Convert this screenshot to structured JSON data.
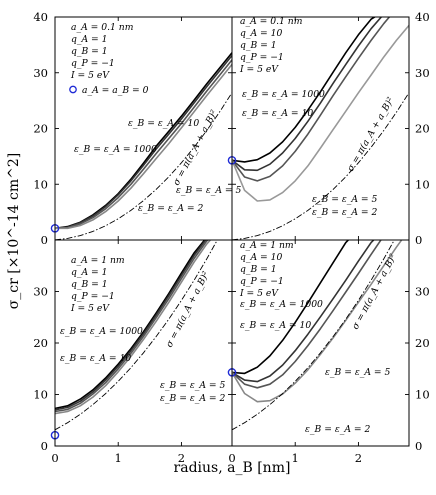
{
  "figure": {
    "xlabel": "radius, a_B [nm]",
    "ylabel": "σ_cr [×10^-14 cm^2]",
    "left_ticks": [
      "0",
      "10",
      "20",
      "30",
      "40"
    ],
    "right_ticks": [
      "0",
      "10",
      "20",
      "30",
      "40"
    ],
    "bottom_ticks": [
      "0",
      "1",
      "2",
      "0",
      "1",
      "2"
    ]
  },
  "chart_data": [
    {
      "type": "line",
      "panel": "top-left",
      "xlim": [
        0,
        2.8
      ],
      "ylim": [
        0,
        40
      ],
      "params": [
        "a_A = 0.1 nm",
        "q_A = 1",
        "q_B = 1",
        "q_P = −1",
        "I = 5 eV"
      ],
      "marker_label": "a_A = a_B = 0",
      "annotations": [
        "ε_B = ε_A = 10",
        "ε_B = ε_A = 1000",
        "ε_B = ε_A = 5",
        "ε_B = ε_A = 2",
        "σ = π(a_A + a_B)²"
      ],
      "marker": {
        "x": 0,
        "y": 2.1
      },
      "series": [
        {
          "label": "ε_B = ε_A = 1000",
          "color": "#000000",
          "x": [
            0,
            0.2,
            0.4,
            0.6,
            0.8,
            1.0,
            1.2,
            1.4,
            1.6,
            1.8,
            2.0,
            2.2,
            2.4,
            2.6,
            2.8
          ],
          "y": [
            2.1,
            2.4,
            3.2,
            4.5,
            6.2,
            8.3,
            10.9,
            13.8,
            16.8,
            19.5,
            22.2,
            25.1,
            28.0,
            30.8,
            33.6
          ]
        },
        {
          "label": "ε_B = ε_A = 10",
          "color": "#333333",
          "x": [
            0,
            0.2,
            0.4,
            0.6,
            0.8,
            1.0,
            1.2,
            1.4,
            1.6,
            1.8,
            2.0,
            2.2,
            2.4,
            2.6,
            2.8
          ],
          "y": [
            2.1,
            2.3,
            3.1,
            4.3,
            6.0,
            8.1,
            10.6,
            13.4,
            16.3,
            19.0,
            21.7,
            24.6,
            27.5,
            30.3,
            33.1
          ]
        },
        {
          "label": "ε_B = ε_A = 5",
          "color": "#555555",
          "x": [
            0,
            0.2,
            0.4,
            0.6,
            0.8,
            1.0,
            1.2,
            1.4,
            1.6,
            1.8,
            2.0,
            2.2,
            2.4,
            2.6,
            2.8
          ],
          "y": [
            2.1,
            2.2,
            2.9,
            4.0,
            5.6,
            7.6,
            10.0,
            12.7,
            15.5,
            18.2,
            20.9,
            23.8,
            26.7,
            29.5,
            32.3
          ]
        },
        {
          "label": "ε_B = ε_A = 2",
          "color": "#888888",
          "x": [
            0,
            0.2,
            0.4,
            0.6,
            0.8,
            1.0,
            1.2,
            1.4,
            1.6,
            1.8,
            2.0,
            2.2,
            2.4,
            2.6,
            2.8
          ],
          "y": [
            2.1,
            2.1,
            2.6,
            3.6,
            5.1,
            7.0,
            9.3,
            11.9,
            14.6,
            17.3,
            20.1,
            23.0,
            25.9,
            28.7,
            31.5
          ]
        },
        {
          "label": "σ = π(a_A + a_B)²",
          "style": "dashdot",
          "color": "#000000",
          "x": [
            0,
            0.2,
            0.4,
            0.6,
            0.8,
            1.0,
            1.2,
            1.4,
            1.6,
            1.8,
            2.0,
            2.2,
            2.4,
            2.6,
            2.8
          ],
          "y": [
            0.03,
            0.28,
            0.79,
            1.54,
            2.54,
            3.8,
            5.31,
            7.07,
            9.08,
            11.34,
            13.85,
            16.62,
            19.63,
            22.9,
            26.42
          ]
        }
      ]
    },
    {
      "type": "line",
      "panel": "top-right",
      "xlim": [
        0,
        2.8
      ],
      "ylim": [
        0,
        40
      ],
      "params": [
        "a_A = 0.1 nm",
        "q_A = 10",
        "q_B = 1",
        "q_P = −1",
        "I = 5 eV"
      ],
      "annotations": [
        "ε_B = ε_A = 1000",
        "ε_B = ε_A = 10",
        "ε_B = ε_A = 5",
        "ε_B = ε_A = 2",
        "σ = π(a_A + a_B)²"
      ],
      "marker": {
        "x": 0,
        "y": 14.3
      },
      "series": [
        {
          "label": "ε_B = ε_A = 1000",
          "color": "#000000",
          "x": [
            0,
            0.2,
            0.4,
            0.6,
            0.8,
            1.0,
            1.2,
            1.4,
            1.6,
            1.8,
            2.0,
            2.2,
            2.4,
            2.6
          ],
          "y": [
            14.3,
            14.0,
            14.4,
            15.6,
            17.6,
            20.2,
            23.3,
            26.6,
            30.1,
            33.6,
            36.8,
            39.6,
            41.0,
            42.0
          ]
        },
        {
          "label": "ε_B = ε_A = 10",
          "color": "#333333",
          "x": [
            0,
            0.2,
            0.4,
            0.6,
            0.8,
            1.0,
            1.2,
            1.4,
            1.6,
            1.8,
            2.0,
            2.2,
            2.4,
            2.6
          ],
          "y": [
            14.3,
            12.6,
            12.5,
            13.6,
            15.6,
            18.2,
            21.3,
            24.6,
            28.1,
            31.5,
            34.8,
            37.9,
            40.5,
            42.0
          ]
        },
        {
          "label": "ε_B = ε_A = 5",
          "color": "#555555",
          "x": [
            0,
            0.2,
            0.4,
            0.6,
            0.8,
            1.0,
            1.2,
            1.4,
            1.6,
            1.8,
            2.0,
            2.2,
            2.4,
            2.6
          ],
          "y": [
            14.3,
            11.3,
            10.6,
            11.4,
            13.3,
            15.9,
            19.0,
            22.4,
            25.9,
            29.3,
            32.6,
            35.8,
            38.8,
            41.5
          ]
        },
        {
          "label": "ε_B = ε_A = 2",
          "color": "#999999",
          "x": [
            0,
            0.2,
            0.4,
            0.6,
            0.8,
            1.0,
            1.2,
            1.4,
            1.6,
            1.8,
            2.0,
            2.2,
            2.4,
            2.6,
            2.8
          ],
          "y": [
            14.3,
            8.9,
            7.0,
            7.2,
            8.5,
            10.6,
            13.3,
            16.5,
            19.8,
            23.1,
            26.4,
            29.6,
            32.8,
            35.8,
            38.5
          ]
        },
        {
          "label": "σ = π(a_A + a_B)²",
          "style": "dashdot",
          "color": "#000000",
          "x": [
            0,
            0.2,
            0.4,
            0.6,
            0.8,
            1.0,
            1.2,
            1.4,
            1.6,
            1.8,
            2.0,
            2.2,
            2.4,
            2.6,
            2.8
          ],
          "y": [
            0.03,
            0.28,
            0.79,
            1.54,
            2.54,
            3.8,
            5.31,
            7.07,
            9.08,
            11.34,
            13.85,
            16.62,
            19.63,
            22.9,
            26.42
          ]
        }
      ]
    },
    {
      "type": "line",
      "panel": "bottom-left",
      "xlim": [
        0,
        2.8
      ],
      "ylim": [
        0,
        40
      ],
      "params": [
        "a_A = 1 nm",
        "q_A = 1",
        "q_B = 1",
        "q_P = −1",
        "I = 5 eV"
      ],
      "annotations": [
        "ε_B = ε_A = 1000",
        "ε_B = ε_A = 10",
        "ε_B = ε_A = 5",
        "ε_B = ε_A = 2",
        "σ = π(a_A + a_B)²"
      ],
      "marker": {
        "x": 0,
        "y": 2.1
      },
      "series": [
        {
          "label": "ε_B = ε_A = 1000",
          "color": "#000000",
          "x": [
            0,
            0.2,
            0.4,
            0.6,
            0.8,
            1.0,
            1.2,
            1.4,
            1.6,
            1.8,
            2.0,
            2.2,
            2.4,
            2.6
          ],
          "y": [
            7.3,
            7.8,
            9.1,
            10.9,
            13.2,
            15.9,
            18.9,
            22.2,
            25.8,
            29.6,
            33.6,
            37.5,
            40.5,
            42.0
          ]
        },
        {
          "label": "ε_B = ε_A = 10",
          "color": "#333333",
          "x": [
            0,
            0.2,
            0.4,
            0.6,
            0.8,
            1.0,
            1.2,
            1.4,
            1.6,
            1.8,
            2.0,
            2.2,
            2.4,
            2.6
          ],
          "y": [
            7.0,
            7.5,
            8.7,
            10.5,
            12.8,
            15.5,
            18.5,
            21.8,
            25.4,
            29.2,
            33.1,
            37.0,
            40.3,
            42.0
          ]
        },
        {
          "label": "ε_B = ε_A = 5",
          "color": "#555555",
          "x": [
            0,
            0.2,
            0.4,
            0.6,
            0.8,
            1.0,
            1.2,
            1.4,
            1.6,
            1.8,
            2.0,
            2.2,
            2.4,
            2.6
          ],
          "y": [
            6.7,
            7.1,
            8.3,
            10.1,
            12.3,
            15.0,
            18.0,
            21.3,
            24.9,
            28.6,
            32.5,
            36.4,
            39.8,
            42.0
          ]
        },
        {
          "label": "ε_B = ε_A = 2",
          "color": "#888888",
          "x": [
            0,
            0.2,
            0.4,
            0.6,
            0.8,
            1.0,
            1.2,
            1.4,
            1.6,
            1.8,
            2.0,
            2.2,
            2.4,
            2.6
          ],
          "y": [
            6.3,
            6.7,
            7.8,
            9.5,
            11.7,
            14.4,
            17.4,
            20.7,
            24.2,
            27.9,
            31.8,
            35.7,
            39.2,
            42.0
          ]
        },
        {
          "label": "σ = π(a_A + a_B)²",
          "style": "dashdot",
          "color": "#000000",
          "x": [
            0,
            0.2,
            0.4,
            0.6,
            0.8,
            1.0,
            1.2,
            1.4,
            1.6,
            1.8,
            2.0,
            2.2,
            2.4,
            2.6,
            2.8
          ],
          "y": [
            3.14,
            4.52,
            6.16,
            8.04,
            10.18,
            12.57,
            15.21,
            18.1,
            21.24,
            24.63,
            28.27,
            32.17,
            36.32,
            40.72,
            45.36
          ]
        }
      ]
    },
    {
      "type": "line",
      "panel": "bottom-right",
      "xlim": [
        0,
        2.8
      ],
      "ylim": [
        0,
        40
      ],
      "params": [
        "a_A = 1 nm",
        "q_A = 10",
        "q_B = 1",
        "q_P = −1",
        "I = 5 eV"
      ],
      "annotations": [
        "ε_B = ε_A = 1000",
        "ε_B = ε_A = 10",
        "ε_B = ε_A = 5",
        "ε_B = ε_A = 2",
        "σ = π(a_A + a_B)²"
      ],
      "marker": {
        "x": 0,
        "y": 14.3
      },
      "series": [
        {
          "label": "ε_B = ε_A = 1000",
          "color": "#000000",
          "x": [
            0,
            0.2,
            0.4,
            0.6,
            0.8,
            1.0,
            1.2,
            1.4,
            1.6,
            1.8,
            2.0
          ],
          "y": [
            14.3,
            14.1,
            15.3,
            17.5,
            20.5,
            24.0,
            27.8,
            31.7,
            35.6,
            39.5,
            42.0
          ]
        },
        {
          "label": "ε_B = ε_A = 10",
          "color": "#333333",
          "x": [
            0,
            0.2,
            0.4,
            0.6,
            0.8,
            1.0,
            1.2,
            1.4,
            1.6,
            1.8,
            2.0,
            2.2,
            2.4
          ],
          "y": [
            14.3,
            12.8,
            12.5,
            13.6,
            15.7,
            18.5,
            21.7,
            25.1,
            28.6,
            32.2,
            35.9,
            39.5,
            42.0
          ]
        },
        {
          "label": "ε_B = ε_A = 5",
          "color": "#555555",
          "x": [
            0,
            0.2,
            0.4,
            0.6,
            0.8,
            1.0,
            1.2,
            1.4,
            1.6,
            1.8,
            2.0,
            2.2,
            2.4,
            2.6
          ],
          "y": [
            14.3,
            12.0,
            11.3,
            12.0,
            13.8,
            16.4,
            19.5,
            22.8,
            26.3,
            29.9,
            33.5,
            37.2,
            40.8,
            42.0
          ]
        },
        {
          "label": "ε_B = ε_A = 2",
          "color": "#888888",
          "x": [
            0,
            0.2,
            0.4,
            0.6,
            0.8,
            1.0,
            1.2,
            1.4,
            1.6,
            1.8,
            2.0,
            2.2,
            2.4,
            2.6,
            2.8
          ],
          "y": [
            14.3,
            10.2,
            8.6,
            8.8,
            10.1,
            12.2,
            14.8,
            17.8,
            21.0,
            24.4,
            27.9,
            31.4,
            35.0,
            38.6,
            42.0
          ]
        },
        {
          "label": "σ = π(a_A + a_B)²",
          "style": "dashdot",
          "color": "#000000",
          "x": [
            0,
            0.2,
            0.4,
            0.6,
            0.8,
            1.0,
            1.2,
            1.4,
            1.6,
            1.8,
            2.0,
            2.2,
            2.4,
            2.6,
            2.8
          ],
          "y": [
            3.14,
            4.52,
            6.16,
            8.04,
            10.18,
            12.57,
            15.21,
            18.1,
            21.24,
            24.63,
            28.27,
            32.17,
            36.32,
            40.72,
            45.36
          ]
        }
      ]
    }
  ]
}
